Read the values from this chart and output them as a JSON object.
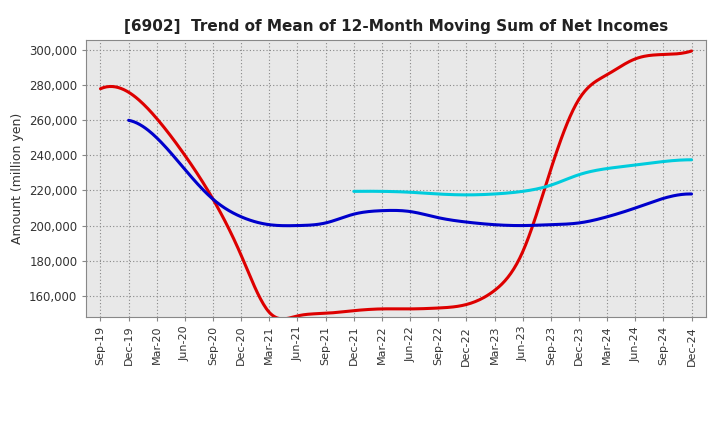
{
  "title": "[6902]  Trend of Mean of 12-Month Moving Sum of Net Incomes",
  "ylabel": "Amount (million yen)",
  "background_color": "#ffffff",
  "grid_color": "#999999",
  "ylim": [
    148000,
    306000
  ],
  "yticks": [
    160000,
    180000,
    200000,
    220000,
    240000,
    260000,
    280000,
    300000
  ],
  "x_labels": [
    "Sep-19",
    "Dec-19",
    "Mar-20",
    "Jun-20",
    "Sep-20",
    "Dec-20",
    "Mar-21",
    "Jun-21",
    "Sep-21",
    "Dec-21",
    "Mar-22",
    "Jun-22",
    "Sep-22",
    "Dec-22",
    "Mar-23",
    "Jun-23",
    "Sep-23",
    "Dec-23",
    "Mar-24",
    "Jun-24",
    "Sep-24",
    "Dec-24"
  ],
  "series": {
    "3 Years": {
      "color": "#dd0000",
      "linewidth": 2.2,
      "data_x": [
        0,
        1,
        2,
        3,
        4,
        5,
        6,
        7,
        8,
        9,
        10,
        11,
        12,
        13,
        14,
        15,
        16,
        17,
        18,
        19,
        20,
        21
      ],
      "data_y": [
        278000,
        276000,
        261000,
        240000,
        215000,
        183000,
        150500,
        148500,
        150000,
        151500,
        152500,
        152500,
        153000,
        155000,
        163000,
        185000,
        232000,
        272000,
        286000,
        295000,
        297500,
        299500
      ]
    },
    "5 Years": {
      "color": "#0000cc",
      "linewidth": 2.2,
      "data_x": [
        1,
        2,
        3,
        4,
        5,
        6,
        7,
        8,
        9,
        10,
        11,
        12,
        13,
        14,
        15,
        16,
        17,
        18,
        19,
        20,
        21
      ],
      "data_y": [
        260000,
        250000,
        232000,
        215000,
        205000,
        200500,
        200000,
        201500,
        206500,
        208500,
        208000,
        204500,
        202000,
        200500,
        200000,
        200500,
        201500,
        205000,
        210000,
        215500,
        218000
      ]
    },
    "7 Years": {
      "color": "#00ccdd",
      "linewidth": 2.2,
      "data_x": [
        9,
        10,
        11,
        12,
        13,
        14,
        15,
        16,
        17,
        18,
        19,
        20,
        21
      ],
      "data_y": [
        219500,
        219500,
        219000,
        218000,
        217500,
        218000,
        219500,
        223000,
        229000,
        232500,
        234500,
        236500,
        237500
      ]
    },
    "10 Years": {
      "color": "#008000",
      "linewidth": 2.2,
      "data_x": [],
      "data_y": []
    }
  }
}
